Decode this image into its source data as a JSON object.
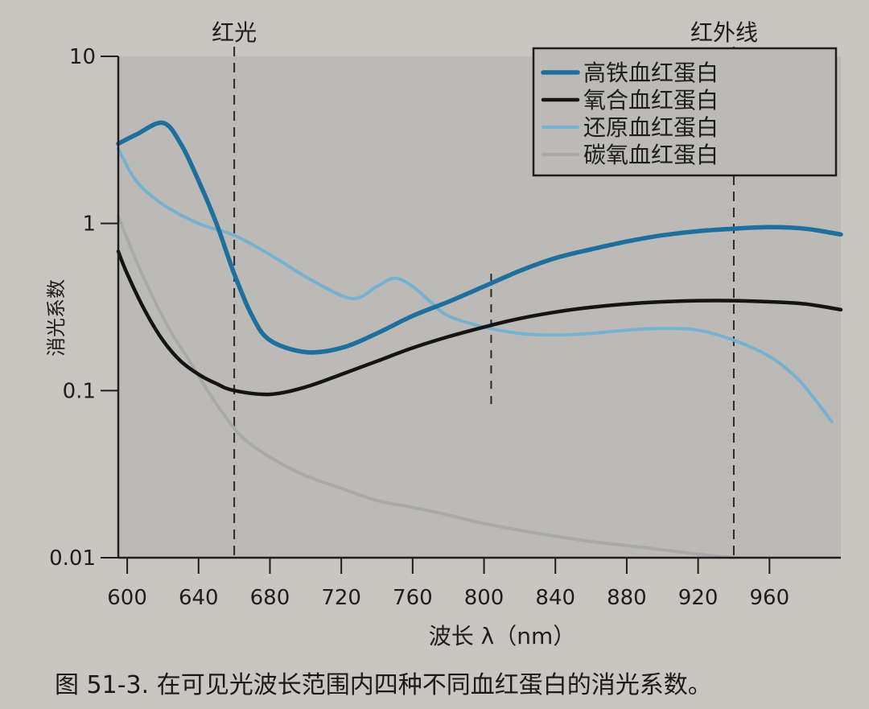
{
  "caption": "图 51-3. 在可见光波长范围内四种不同血红蛋白的消光系数。",
  "colors": {
    "paper": "#c9c6c1",
    "plot_bg": "#bcbab6",
    "axis": "#1e1e1e"
  },
  "chart_data": {
    "type": "line",
    "title": "",
    "xlabel": "波长 λ（nm）",
    "ylabel": "消光系数",
    "xscale": "linear",
    "yscale": "log",
    "xlim": [
      595,
      1000
    ],
    "ylim": [
      0.01,
      10
    ],
    "x_ticks": [
      600,
      640,
      680,
      720,
      760,
      800,
      840,
      880,
      920,
      960
    ],
    "y_ticks": [
      {
        "value": 10,
        "label": "10"
      },
      {
        "value": 1,
        "label": "1"
      },
      {
        "value": 0.1,
        "label": "0.1"
      },
      {
        "value": 0.01,
        "label": "0.01"
      }
    ],
    "grid": false,
    "legend_position": "top-right",
    "reference_lines": [
      {
        "x": 660,
        "label": "红光",
        "style": "dashed"
      },
      {
        "x": 940,
        "label": "红外线",
        "style": "dashed"
      },
      {
        "x": 804,
        "label": "",
        "style": "dashed-short",
        "y_range": [
          0.08,
          0.5
        ]
      }
    ],
    "series": [
      {
        "name": "高铁血红蛋白",
        "color": "#1f6f9c",
        "width": 5.5,
        "x": [
          595,
          605,
          620,
          630,
          640,
          650,
          660,
          670,
          680,
          700,
          720,
          740,
          760,
          780,
          800,
          820,
          840,
          860,
          880,
          900,
          920,
          940,
          960,
          980,
          1000
        ],
        "y": [
          3.0,
          3.4,
          4.0,
          3.0,
          1.8,
          1.0,
          0.5,
          0.28,
          0.2,
          0.17,
          0.18,
          0.22,
          0.28,
          0.34,
          0.42,
          0.52,
          0.62,
          0.7,
          0.78,
          0.85,
          0.9,
          0.93,
          0.95,
          0.93,
          0.86
        ]
      },
      {
        "name": "氧合血红蛋白",
        "color": "#141414",
        "width": 4.5,
        "x": [
          595,
          600,
          610,
          620,
          630,
          640,
          650,
          660,
          680,
          700,
          720,
          740,
          760,
          780,
          800,
          820,
          840,
          860,
          880,
          900,
          920,
          940,
          960,
          980,
          1000
        ],
        "y": [
          0.68,
          0.5,
          0.3,
          0.2,
          0.15,
          0.125,
          0.11,
          0.1,
          0.095,
          0.105,
          0.125,
          0.15,
          0.18,
          0.21,
          0.24,
          0.27,
          0.295,
          0.315,
          0.33,
          0.34,
          0.345,
          0.345,
          0.34,
          0.33,
          0.305
        ]
      },
      {
        "name": "还原血红蛋白",
        "color": "#76b2d0",
        "width": 4,
        "x": [
          595,
          605,
          620,
          640,
          660,
          680,
          700,
          720,
          730,
          740,
          750,
          760,
          770,
          780,
          800,
          820,
          840,
          860,
          880,
          900,
          920,
          940,
          960,
          975,
          985,
          995
        ],
        "y": [
          2.8,
          1.8,
          1.3,
          1.0,
          0.85,
          0.65,
          0.48,
          0.37,
          0.36,
          0.42,
          0.47,
          0.42,
          0.34,
          0.28,
          0.24,
          0.22,
          0.215,
          0.22,
          0.23,
          0.235,
          0.23,
          0.2,
          0.16,
          0.12,
          0.09,
          0.065
        ]
      },
      {
        "name": "碳氧血红蛋白",
        "color": "#a9a9a9",
        "width": 4,
        "x": [
          595,
          605,
          615,
          625,
          635,
          645,
          655,
          665,
          680,
          700,
          720,
          740,
          760,
          780,
          800,
          830,
          860,
          890,
          920,
          940
        ],
        "y": [
          1.1,
          0.6,
          0.35,
          0.22,
          0.15,
          0.1,
          0.07,
          0.052,
          0.04,
          0.031,
          0.026,
          0.022,
          0.02,
          0.018,
          0.016,
          0.014,
          0.0125,
          0.0115,
          0.0105,
          0.01
        ]
      }
    ]
  }
}
